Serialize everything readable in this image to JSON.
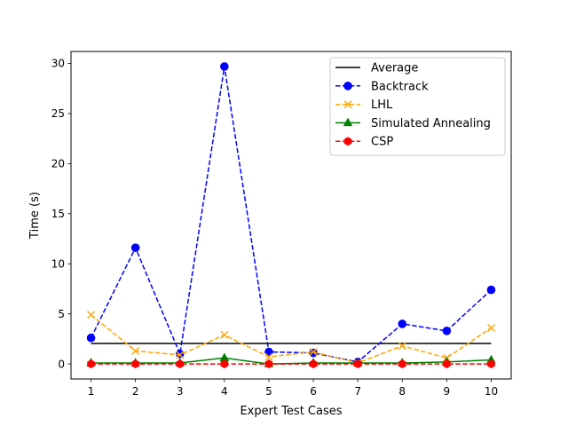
{
  "chart_data": {
    "type": "line",
    "xlabel": "Expert Test Cases",
    "ylabel": "Time (s)",
    "x": [
      1,
      2,
      3,
      4,
      5,
      6,
      7,
      8,
      9,
      10
    ],
    "xlim": [
      0.55,
      10.45
    ],
    "ylim": [
      -1.5,
      31.2
    ],
    "xticks": [
      1,
      2,
      3,
      4,
      5,
      6,
      7,
      8,
      9,
      10
    ],
    "yticks": [
      0,
      5,
      10,
      15,
      20,
      25,
      30
    ],
    "grid": false,
    "legend_position": "top-right",
    "series": [
      {
        "name": "Average",
        "color": "#000000",
        "dash": "solid",
        "marker": "none",
        "values": [
          2.05,
          2.05,
          2.05,
          2.05,
          2.05,
          2.05,
          2.05,
          2.05,
          2.05,
          2.05
        ]
      },
      {
        "name": "Backtrack",
        "color": "#0000ff",
        "dash": "dashed",
        "marker": "circle",
        "values": [
          2.6,
          11.6,
          1.0,
          29.7,
          1.2,
          1.1,
          0.2,
          4.0,
          3.3,
          7.4
        ]
      },
      {
        "name": "LHL",
        "color": "#ffa500",
        "dash": "dashed",
        "marker": "x",
        "values": [
          4.9,
          1.3,
          0.9,
          2.9,
          0.7,
          1.2,
          0.1,
          1.8,
          0.6,
          3.6
        ]
      },
      {
        "name": "Simulated Annealing",
        "color": "#008000",
        "dash": "solid",
        "marker": "triangle",
        "values": [
          0.1,
          0.1,
          0.1,
          0.6,
          0.0,
          0.1,
          0.1,
          0.1,
          0.2,
          0.4
        ]
      },
      {
        "name": "CSP",
        "color": "#ff0000",
        "dash": "dashed",
        "marker": "hexagon",
        "values": [
          0.0,
          0.0,
          0.0,
          0.0,
          0.0,
          0.0,
          0.0,
          0.0,
          0.0,
          0.0
        ]
      }
    ]
  }
}
